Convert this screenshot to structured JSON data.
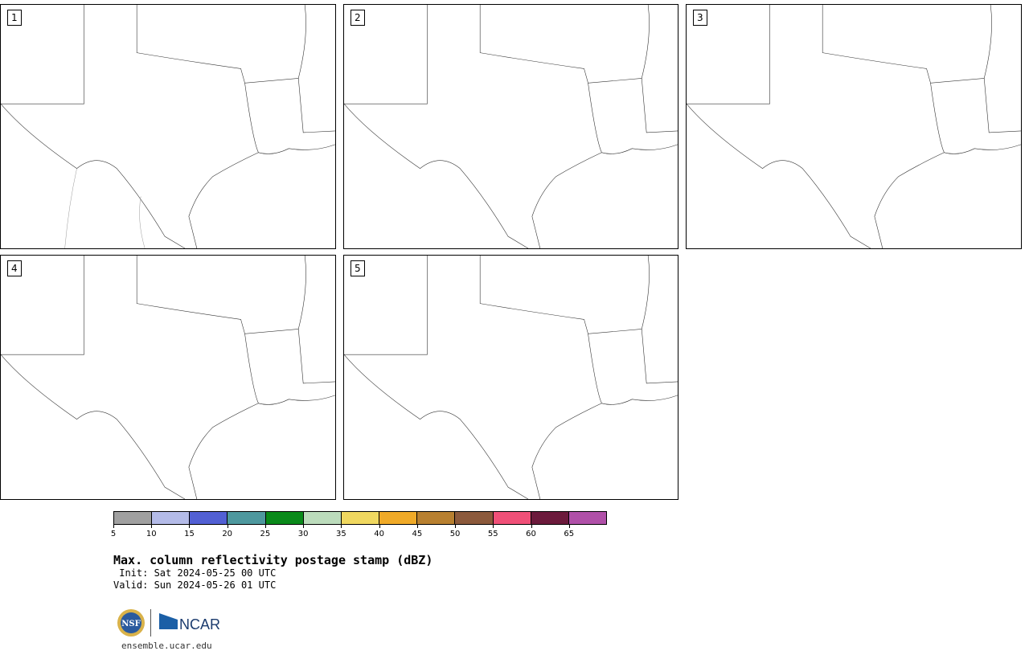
{
  "panels": [
    {
      "number": "1"
    },
    {
      "number": "2"
    },
    {
      "number": "3"
    },
    {
      "number": "4"
    },
    {
      "number": "5"
    }
  ],
  "colorbar": {
    "colors": [
      "#a0a0a0",
      "#b4bbe8",
      "#5260d4",
      "#4e989e",
      "#0a8a1a",
      "#bcdcbc",
      "#f0d860",
      "#f0aa28",
      "#b88030",
      "#8c5a3c",
      "#f05078",
      "#6c1a3c",
      "#b050a8"
    ],
    "tick_labels": [
      "5",
      "10",
      "15",
      "20",
      "25",
      "30",
      "35",
      "40",
      "45",
      "50",
      "55",
      "60",
      "65"
    ]
  },
  "title": "Max. column reflectivity postage stamp (dBZ)",
  "init_text": " Init: Sat 2024-05-25 00 UTC",
  "valid_text": "Valid: Sun 2024-05-26 01 UTC",
  "logos": {
    "nsf": "NSF",
    "ncar": "NCAR"
  },
  "url": "ensemble.ucar.edu"
}
